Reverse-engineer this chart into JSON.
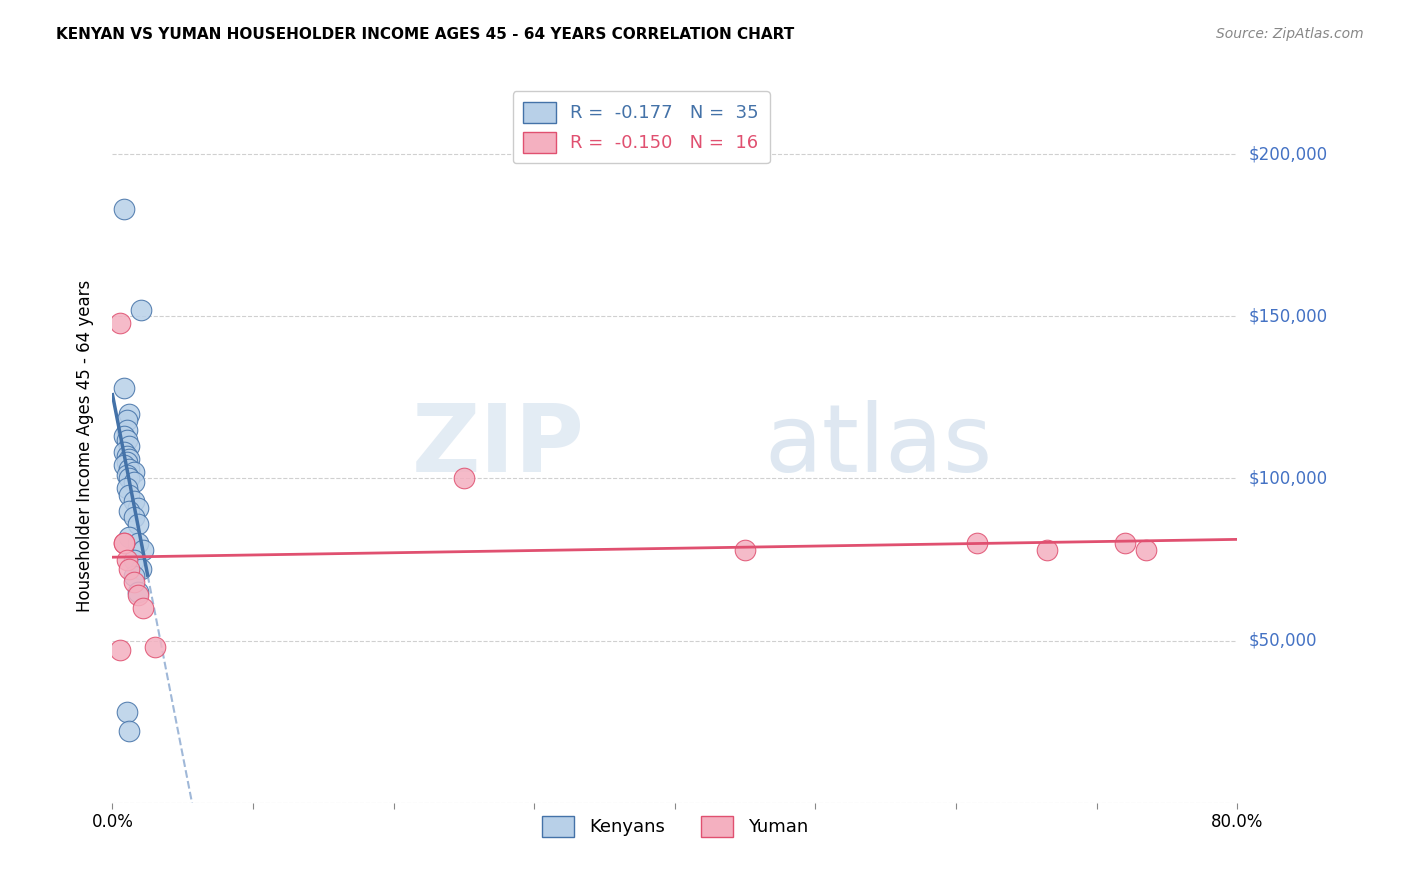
{
  "title": "KENYAN VS YUMAN HOUSEHOLDER INCOME AGES 45 - 64 YEARS CORRELATION CHART",
  "source": "Source: ZipAtlas.com",
  "ylabel": "Householder Income Ages 45 - 64 years",
  "xlim": [
    0.0,
    0.8
  ],
  "ylim": [
    0,
    220000
  ],
  "yticks": [
    0,
    50000,
    100000,
    150000,
    200000
  ],
  "ytick_labels": [
    "",
    "$50,000",
    "$100,000",
    "$150,000",
    "$200,000"
  ],
  "legend_blue_R": "-0.177",
  "legend_blue_N": "35",
  "legend_pink_R": "-0.150",
  "legend_pink_N": "16",
  "legend_blue_label": "Kenyans",
  "legend_pink_label": "Yuman",
  "blue_color": "#b8d0e8",
  "blue_line_color": "#4472a8",
  "pink_color": "#f4b0c0",
  "pink_line_color": "#e05070",
  "blue_dashed_color": "#a0b8d8",
  "blue_x": [
    0.008,
    0.02,
    0.008,
    0.012,
    0.01,
    0.01,
    0.008,
    0.01,
    0.012,
    0.008,
    0.01,
    0.012,
    0.01,
    0.008,
    0.012,
    0.015,
    0.01,
    0.012,
    0.015,
    0.01,
    0.012,
    0.015,
    0.018,
    0.012,
    0.015,
    0.018,
    0.012,
    0.018,
    0.022,
    0.015,
    0.02,
    0.015,
    0.018,
    0.01,
    0.012
  ],
  "blue_y": [
    183000,
    152000,
    128000,
    120000,
    118000,
    115000,
    113000,
    112000,
    110000,
    108000,
    107000,
    106000,
    105000,
    104000,
    103000,
    102000,
    101000,
    100000,
    99000,
    97000,
    95000,
    93000,
    91000,
    90000,
    88000,
    86000,
    82000,
    80000,
    78000,
    75000,
    72000,
    70000,
    65000,
    28000,
    22000
  ],
  "pink_x": [
    0.005,
    0.008,
    0.008,
    0.01,
    0.012,
    0.015,
    0.018,
    0.022,
    0.03,
    0.25,
    0.45,
    0.615,
    0.665,
    0.72,
    0.735,
    0.005
  ],
  "pink_y": [
    148000,
    80000,
    80000,
    75000,
    72000,
    68000,
    64000,
    60000,
    48000,
    100000,
    78000,
    80000,
    78000,
    80000,
    78000,
    47000
  ]
}
